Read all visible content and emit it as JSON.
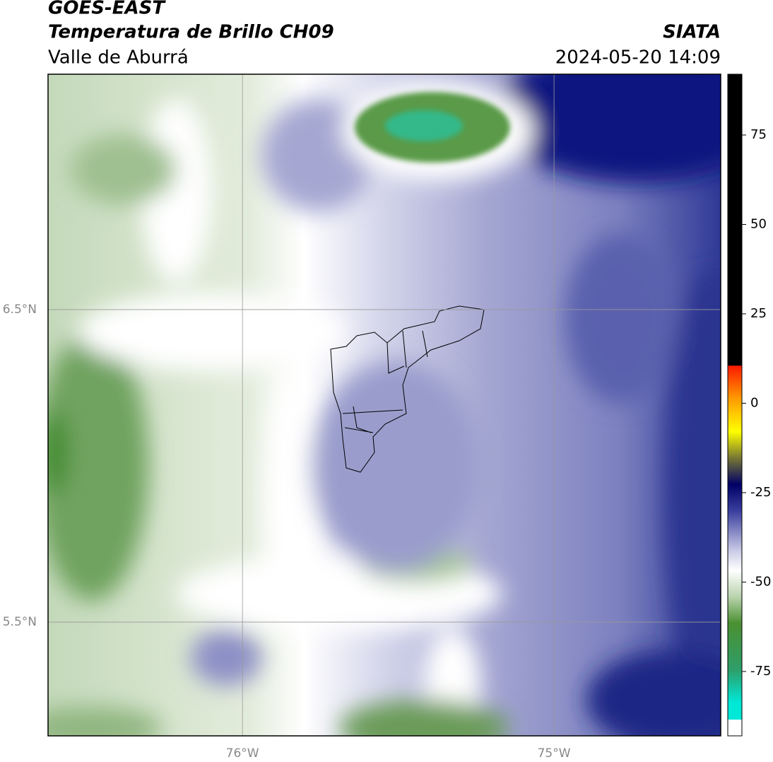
{
  "header": {
    "title": "GOES-EAST",
    "subtitle": "Temperatura de Brillo CH09",
    "region": "Valle de Aburrá",
    "source": "SIATA",
    "datetime": "2024-05-20 14:09"
  },
  "map": {
    "xlim": [
      -76.624,
      -74.465
    ],
    "ylim": [
      5.136,
      7.253
    ],
    "xticks": [
      {
        "value": -76,
        "label": "76°W"
      },
      {
        "value": -75,
        "label": "75°W"
      }
    ],
    "yticks": [
      {
        "value": 6.5,
        "label": "6.5°N"
      },
      {
        "value": 5.5,
        "label": "5.5°N"
      }
    ],
    "grid": true
  },
  "colorbar": {
    "lim": [
      -93,
      92
    ],
    "ticks": [
      75,
      50,
      25,
      0,
      -25,
      -50,
      -75
    ]
  }
}
